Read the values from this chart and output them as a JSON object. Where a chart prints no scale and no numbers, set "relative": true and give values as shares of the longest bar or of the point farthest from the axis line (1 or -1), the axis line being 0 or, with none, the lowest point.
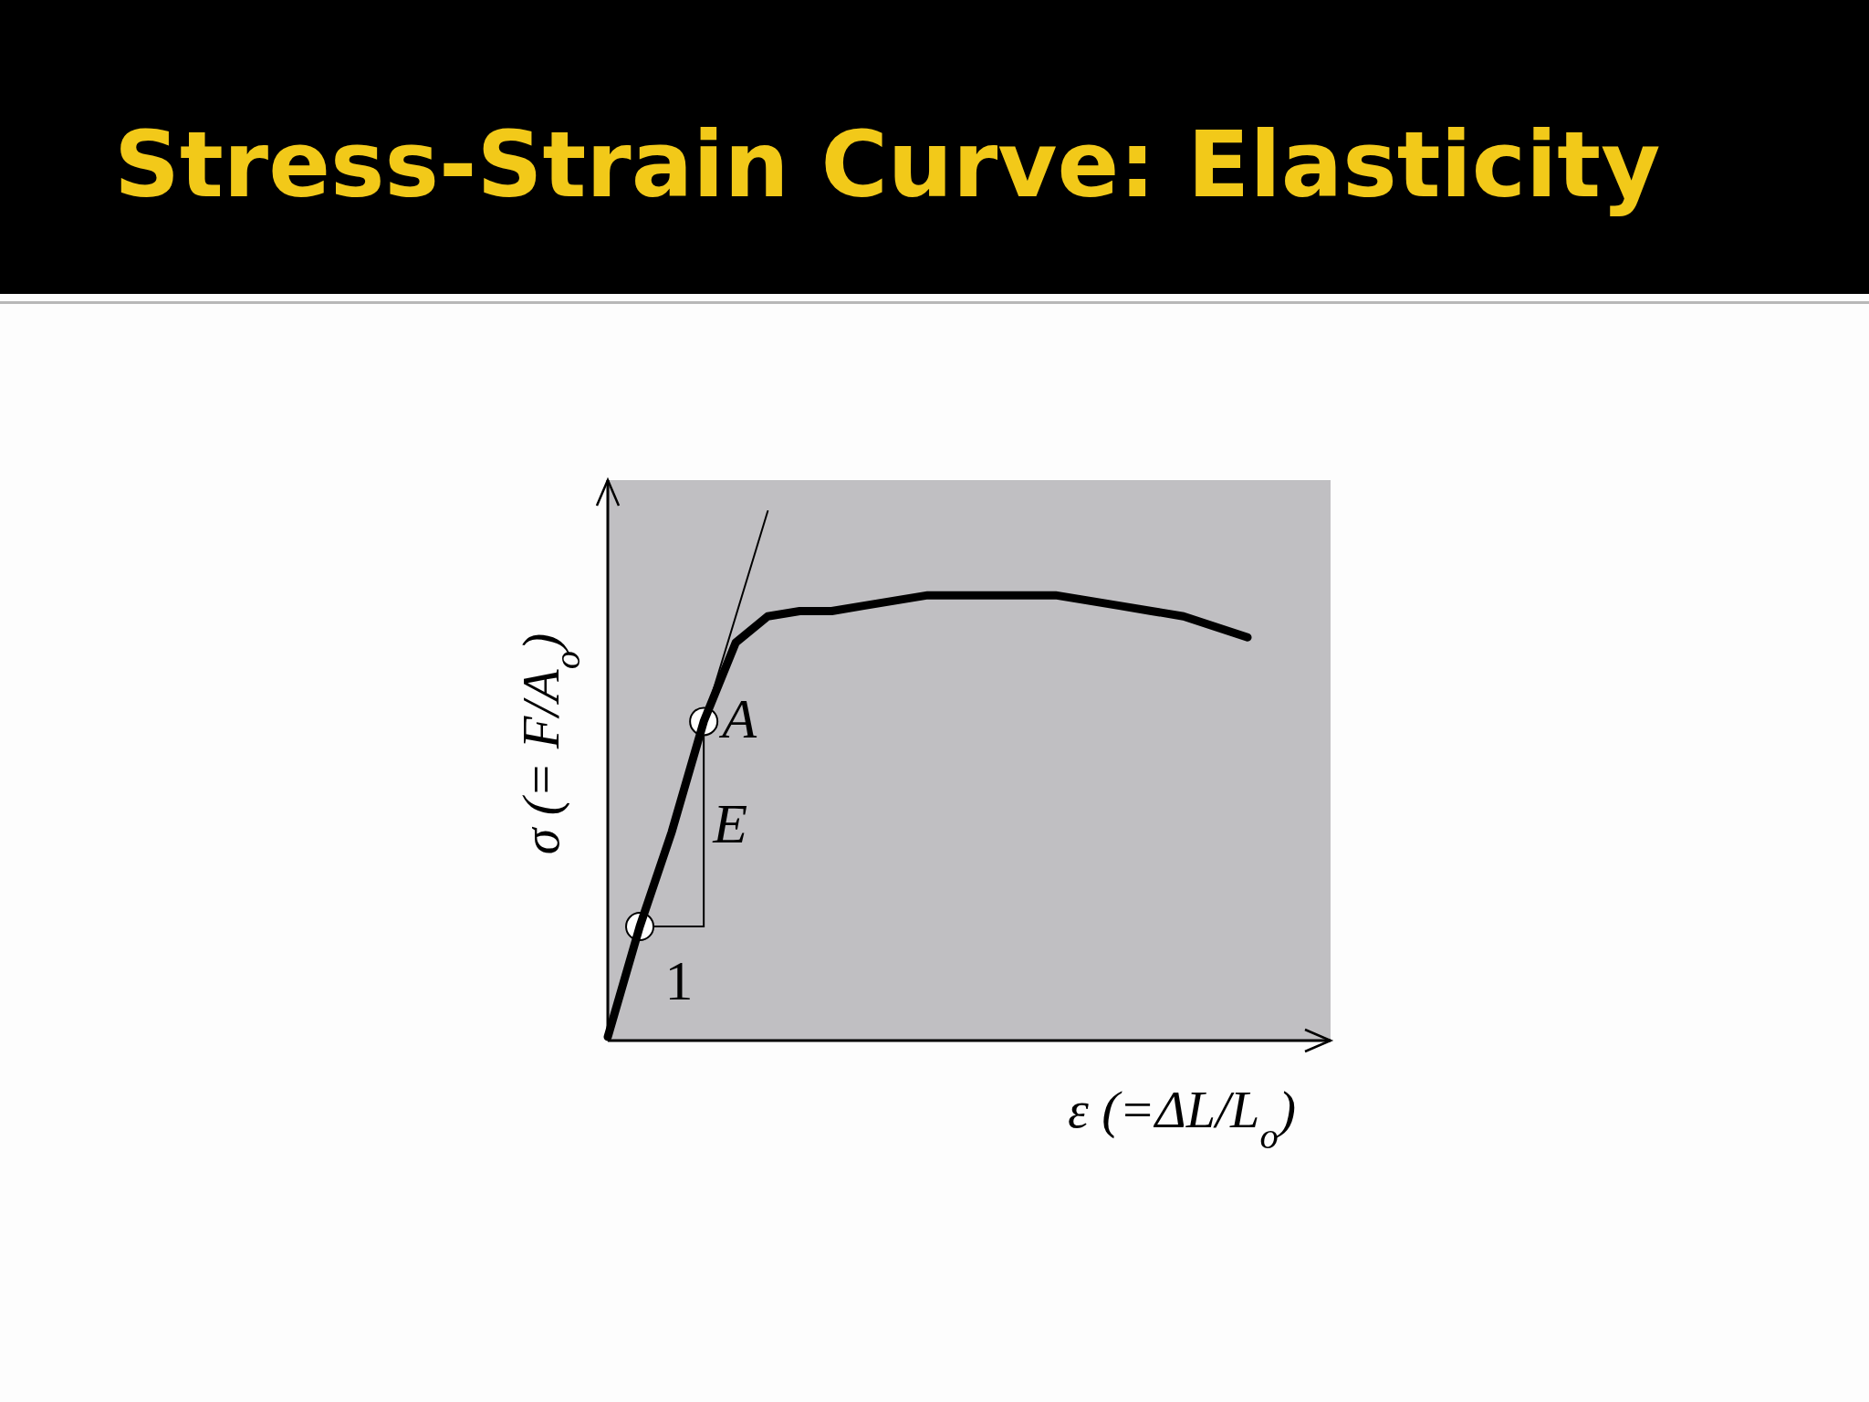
{
  "chart_data": {
    "type": "line",
    "title": "Stress-Strain Curve: Elasticity",
    "xlabel": "ε (=ΔL/L$_{o}$)",
    "ylabel": "σ (= F/A$_{o}$)",
    "relative": true,
    "grid": false,
    "categories": [
      null,
      null,
      null,
      null,
      null,
      null,
      null,
      null,
      null,
      null,
      null,
      null,
      null,
      null,
      null,
      null,
      null,
      null,
      null,
      null,
      null
    ],
    "series": [
      {
        "color": "#000000",
        "values": [
          0,
          0.21,
          0.39,
          0.6,
          0.75,
          0.8,
          0.81,
          0.81,
          0.82,
          0.83,
          0.84,
          0.84,
          0.84,
          0.84,
          0.84,
          0.83,
          0.82,
          0.81,
          0.8,
          0.78,
          0.76
        ]
      },
      {
        "type": "line",
        "color": "#000000",
        "values": [
          null,
          null,
          null,
          0.6,
          0.8,
          1,
          null,
          null,
          null,
          null,
          null,
          null,
          null,
          null,
          null,
          null,
          null,
          null,
          null,
          null,
          null
        ]
      }
    ],
    "annotations": [
      "A",
      "E",
      "1"
    ]
  }
}
